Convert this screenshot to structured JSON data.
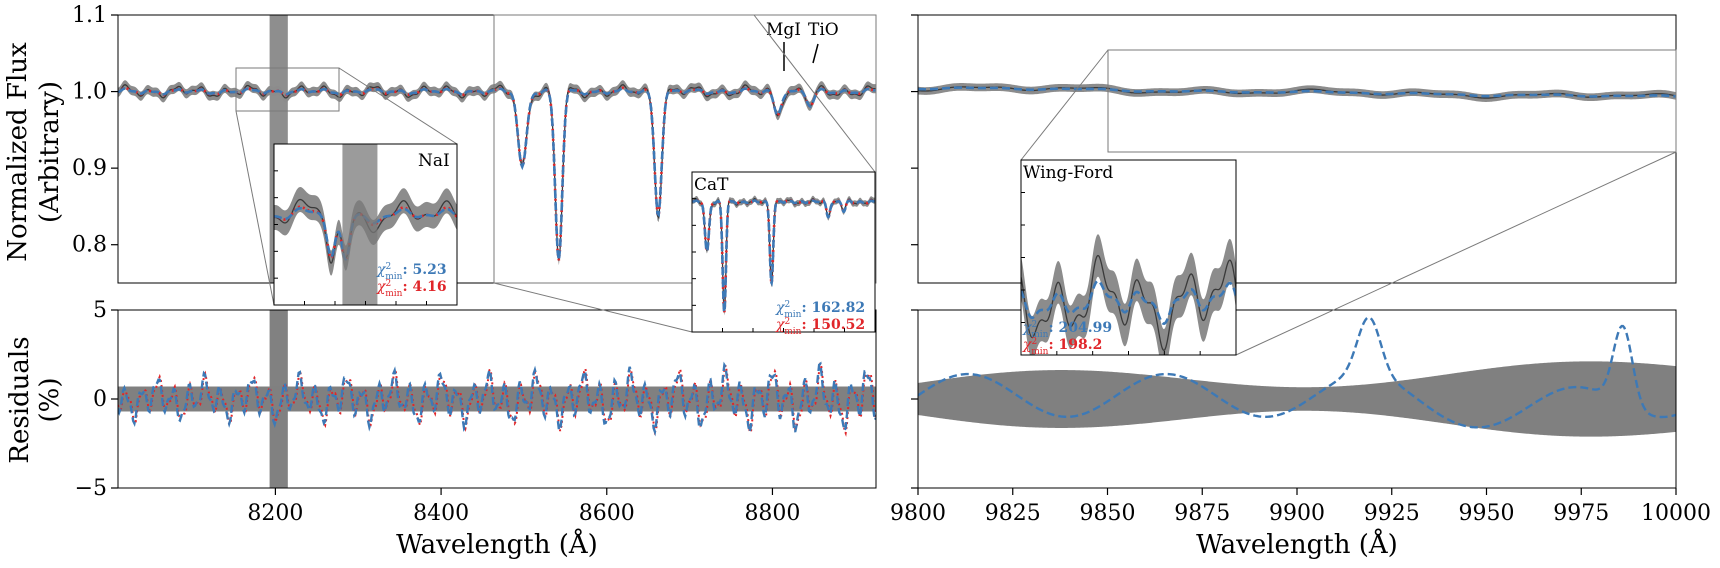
{
  "colors": {
    "band": "#8c8c8c",
    "observed": "#3a3a3a",
    "model_blue": "#3d79b6",
    "model_red": "#e0262a",
    "mask": "#7a7a7a"
  },
  "labels": {
    "ylabel_top": [
      "Normalized Flux",
      "(Arbitrary)"
    ],
    "ylabel_bottom": [
      "Residuals",
      "(%)"
    ],
    "xlabel": "Wavelength (Å)"
  },
  "chart_data": [
    {
      "type": "line",
      "panel": "left-spectrum",
      "xlim": [
        8010,
        8925
      ],
      "ylim": [
        0.75,
        1.1
      ],
      "yticks": [
        0.8,
        0.9,
        1.0,
        1.1
      ],
      "ytick_labels": [
        "0.8",
        "0.9",
        "1.0",
        "1.1"
      ],
      "features": [
        {
          "center": 8498,
          "depth": 0.1,
          "width": 5.0
        },
        {
          "center": 8542,
          "depth": 0.22,
          "width": 4.2
        },
        {
          "center": 8662,
          "depth": 0.16,
          "width": 4.2
        },
        {
          "center": 8806,
          "depth": 0.03,
          "width": 4.0
        },
        {
          "center": 8846,
          "depth": 0.02,
          "width": 4.0
        }
      ],
      "masked_region": [
        8193,
        8215
      ],
      "annotations": [
        "MgI",
        "TiO"
      ],
      "series": [
        {
          "role": "observed",
          "line": "solid"
        },
        {
          "role": "model",
          "line": "dotted"
        },
        {
          "role": "model",
          "line": "dashed"
        }
      ]
    },
    {
      "type": "line",
      "panel": "left-residuals",
      "xlim": [
        8010,
        8925
      ],
      "ylim": [
        -5,
        5
      ],
      "xticks": [
        8200,
        8400,
        8600,
        8800
      ],
      "xtick_labels": [
        "8200",
        "8400",
        "8600",
        "8800"
      ],
      "yticks": [
        -5,
        0,
        5
      ],
      "ytick_labels": [
        "−5",
        "0",
        "5"
      ],
      "uncertainty_band": 0.7
    },
    {
      "type": "line",
      "panel": "right-spectrum",
      "xlim": [
        9800,
        10000
      ],
      "ylim": [
        0.75,
        1.1
      ],
      "series": [
        {
          "role": "observed",
          "line": "solid"
        },
        {
          "role": "model",
          "line": "dashed"
        }
      ]
    },
    {
      "type": "line",
      "panel": "right-residuals",
      "xlim": [
        9800,
        10000
      ],
      "ylim": [
        -5,
        5
      ],
      "xticks": [
        9800,
        9825,
        9850,
        9875,
        9900,
        9925,
        9950,
        9975,
        10000
      ],
      "xtick_labels": [
        "9800",
        "9825",
        "9850",
        "9875",
        "9900",
        "9925",
        "9950",
        "9975",
        "10000"
      ]
    }
  ],
  "insets": {
    "nai": {
      "label": "NaI",
      "xlim": [
        8150,
        8265
      ],
      "chi_blue": "5.23",
      "chi_red": "4.16"
    },
    "cat": {
      "label": "CaT",
      "xlim": [
        8460,
        8925
      ],
      "chi_blue": "162.82",
      "chi_red": "150.52"
    },
    "wf": {
      "label": "Wing-Ford",
      "xlim": [
        9850,
        10000
      ],
      "chi_blue": "204.99",
      "chi_red": "198.2"
    }
  },
  "chi_symbol": "χ",
  "chi_sup": "2",
  "chi_sub": "min",
  "chi_sep": ":"
}
